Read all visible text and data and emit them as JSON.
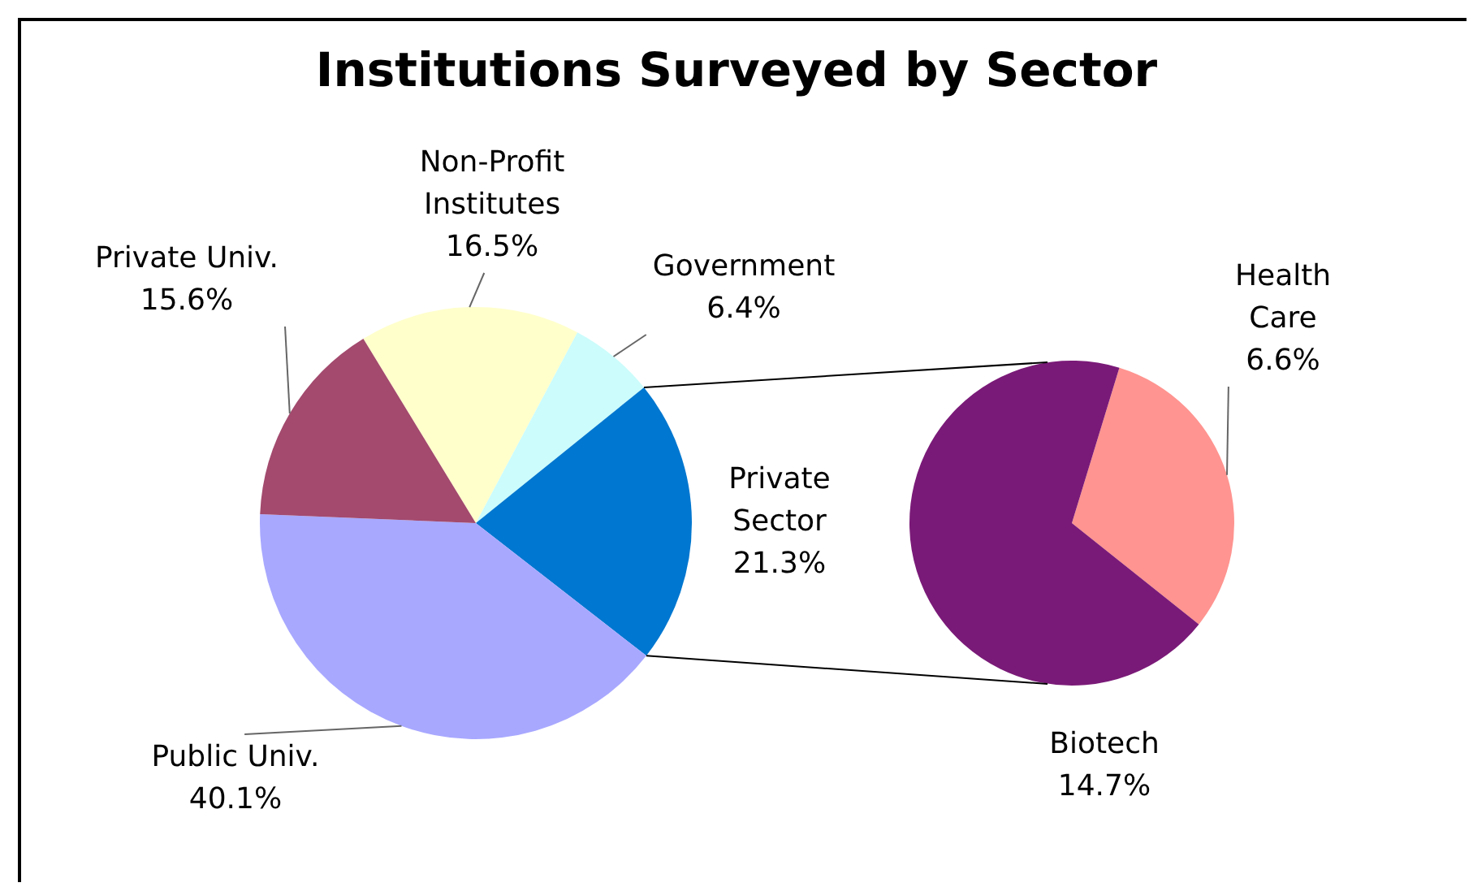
{
  "chart_data": [
    {
      "type": "pie",
      "title": "Institutions Surveyed by Sector",
      "categories": [
        "Non-Profit Institutes",
        "Government",
        "Private Sector",
        "Public Univ.",
        "Private Univ."
      ],
      "values": [
        16.5,
        6.4,
        21.3,
        40.1,
        15.6
      ],
      "colors": [
        "#ffffcc",
        "#ccfcfc",
        "#0077d0",
        "#a8a8ff",
        "#a34a6e"
      ],
      "value_labels": [
        "16.5%",
        "6.4%",
        "21.3%",
        "40.1%",
        "15.6%"
      ]
    },
    {
      "type": "pie",
      "categories": [
        "Health Care",
        "Biotech"
      ],
      "values": [
        6.6,
        14.7
      ],
      "colors": [
        "#ff9490",
        "#7a1a78"
      ],
      "value_labels": [
        "6.6%",
        "14.7%"
      ]
    }
  ]
}
